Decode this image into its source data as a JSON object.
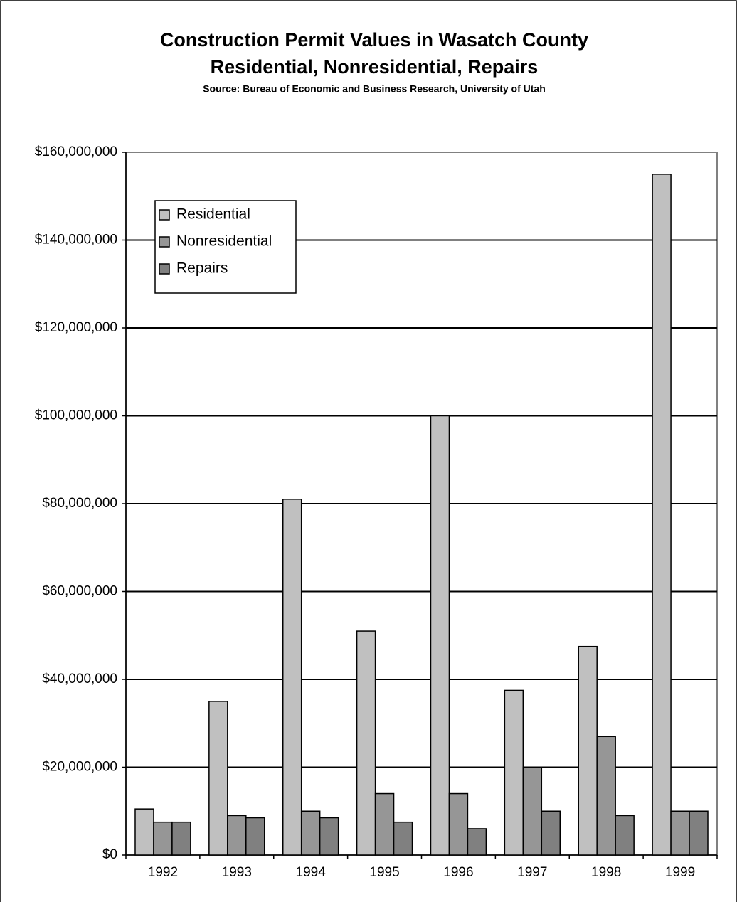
{
  "chart_data": {
    "type": "bar",
    "title": "Construction Permit Values in Wasatch County",
    "subtitle": "Residential, Nonresidential, Repairs",
    "source": "Source: Bureau of Economic and Business Research, University of Utah",
    "categories": [
      "1992",
      "1993",
      "1994",
      "1995",
      "1996",
      "1997",
      "1998",
      "1999"
    ],
    "series": [
      {
        "name": "Residential",
        "color": "#c0c0c0",
        "values": [
          10500000,
          35000000,
          81000000,
          51000000,
          100000000,
          37500000,
          47500000,
          155000000
        ]
      },
      {
        "name": "Nonresidential",
        "color": "#969696",
        "values": [
          7500000,
          9000000,
          10000000,
          14000000,
          14000000,
          20000000,
          27000000,
          10000000
        ]
      },
      {
        "name": "Repairs",
        "color": "#808080",
        "values": [
          7500000,
          8500000,
          8500000,
          7500000,
          6000000,
          10000000,
          9000000,
          10000000
        ]
      }
    ],
    "ylim": [
      0,
      160000000
    ],
    "yticks": [
      {
        "value": 0,
        "label": "$0"
      },
      {
        "value": 20000000,
        "label": "$20,000,000"
      },
      {
        "value": 40000000,
        "label": "$40,000,000"
      },
      {
        "value": 60000000,
        "label": "$60,000,000"
      },
      {
        "value": 80000000,
        "label": "$80,000,000"
      },
      {
        "value": 100000000,
        "label": "$100,000,000"
      },
      {
        "value": 120000000,
        "label": "$120,000,000"
      },
      {
        "value": 140000000,
        "label": "$140,000,000"
      },
      {
        "value": 160000000,
        "label": "$160,000,000"
      }
    ],
    "grid": true,
    "legend": "upper-left"
  }
}
